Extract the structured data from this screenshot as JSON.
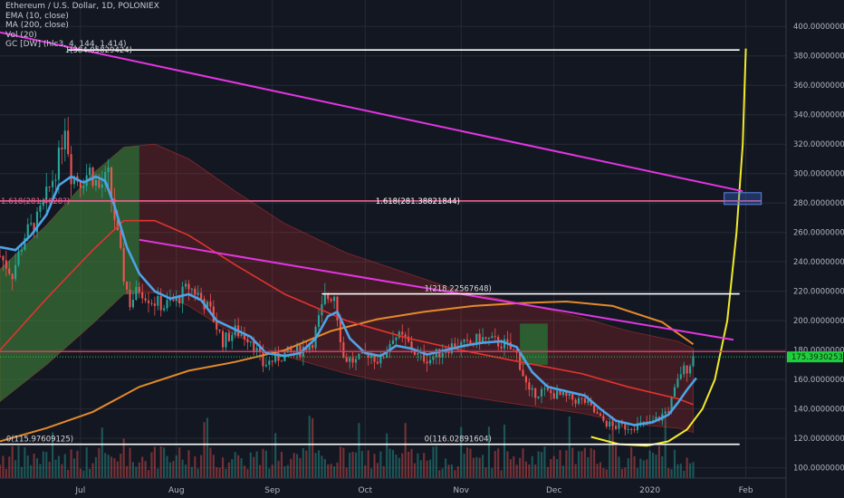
{
  "legend": {
    "title": "Ethereum / U.S. Dollar, 1D, POLONIEX",
    "ema": "EMA (10, close)",
    "ma": "MA (200, close)",
    "vol": "Vol (20)",
    "gc": "GC [DW] (hlc3, 4, 144, 1.414)"
  },
  "colors": {
    "background": "#131722",
    "grid": "#262a35",
    "up": "#26a69a",
    "down": "#ef5350",
    "ema": "#4da3e8",
    "ma": "#e5892b",
    "gc_mid": "#e0332e",
    "gc_green": "#1f8a3a",
    "trendline": "#e236e0",
    "yellow": "#f2ea29",
    "price_label": "#1fce3c",
    "fib": "#ffffff",
    "fib_1618": "#f06292"
  },
  "chart_data": {
    "type": "candlestick",
    "axis": {
      "y_ticks": [
        "100.00000000",
        "120.00000000",
        "140.00000000",
        "160.00000000",
        "180.00000000",
        "200.00000000",
        "220.00000000",
        "240.00000000",
        "260.00000000",
        "280.00000000",
        "300.00000000",
        "320.00000000",
        "340.00000000",
        "360.00000000",
        "380.00000000",
        "400.00000000"
      ],
      "y_values": [
        100,
        120,
        140,
        160,
        180,
        200,
        220,
        240,
        260,
        280,
        300,
        320,
        340,
        360,
        380,
        400
      ],
      "ylim": [
        93,
        418
      ],
      "x_ticks": [
        {
          "label": "Jul",
          "date": "2019-07-01"
        },
        {
          "label": "Aug",
          "date": "2019-08-01"
        },
        {
          "label": "Sep",
          "date": "2019-09-01"
        },
        {
          "label": "Oct",
          "date": "2019-10-01"
        },
        {
          "label": "Nov",
          "date": "2019-11-01"
        },
        {
          "label": "Dec",
          "date": "2019-12-01"
        },
        {
          "label": "2020",
          "date": "2020-01-01"
        },
        {
          "label": "Feb",
          "date": "2020-02-01"
        }
      ],
      "xlim": [
        "2019-06-05",
        "2020-02-14"
      ]
    },
    "current_price": {
      "value": 175.393,
      "label": "175.39302538"
    },
    "levels": [
      {
        "name": "fib-0",
        "value": 115.976,
        "label": "0(115.97609125)",
        "label2": "0(116.02891604)",
        "color": "#ffffff"
      },
      {
        "name": "fib-1",
        "value": 218.226,
        "label": "1(218.22567648)",
        "color": "#ffffff"
      },
      {
        "name": "fib-1618",
        "value": 281.388,
        "label": "1.618(281.38821844)",
        "label_left": "1.618(281.4628?)",
        "color": "#f06292"
      },
      {
        "name": "fib-top",
        "value": 384.06,
        "label": "1(384.05829424)",
        "color": "#ffffff"
      },
      {
        "name": "resistance",
        "value": 179,
        "label": "",
        "color": "#e53964"
      }
    ],
    "trendlines": [
      {
        "name": "upper-trendline",
        "from": [
          "2019-06-05",
          396
        ],
        "to": [
          "2020-01-31",
          288
        ]
      },
      {
        "name": "lower-trendline",
        "from": [
          "2019-07-20",
          255
        ],
        "to": [
          "2020-01-28",
          187
        ]
      }
    ],
    "series": [
      {
        "name": "Close",
        "points": [
          [
            "2019-06-05",
            244
          ],
          [
            "2019-06-09",
            232
          ],
          [
            "2019-06-13",
            258
          ],
          [
            "2019-06-17",
            268
          ],
          [
            "2019-06-21",
            290
          ],
          [
            "2019-06-24",
            310
          ],
          [
            "2019-06-26",
            335
          ],
          [
            "2019-06-28",
            300
          ],
          [
            "2019-07-01",
            295
          ],
          [
            "2019-07-04",
            302
          ],
          [
            "2019-07-07",
            290
          ],
          [
            "2019-07-10",
            298
          ],
          [
            "2019-07-12",
            270
          ],
          [
            "2019-07-15",
            230
          ],
          [
            "2019-07-17",
            212
          ],
          [
            "2019-07-20",
            222
          ],
          [
            "2019-07-24",
            214
          ],
          [
            "2019-07-28",
            210
          ],
          [
            "2019-08-01",
            214
          ],
          [
            "2019-08-05",
            223
          ],
          [
            "2019-08-08",
            218
          ],
          [
            "2019-08-12",
            206
          ],
          [
            "2019-08-16",
            186
          ],
          [
            "2019-08-20",
            193
          ],
          [
            "2019-08-25",
            188
          ],
          [
            "2019-08-29",
            170
          ],
          [
            "2019-09-02",
            174
          ],
          [
            "2019-09-06",
            178
          ],
          [
            "2019-09-10",
            180
          ],
          [
            "2019-09-14",
            186
          ],
          [
            "2019-09-18",
            215
          ],
          [
            "2019-09-21",
            218
          ],
          [
            "2019-09-24",
            175
          ],
          [
            "2019-09-28",
            172
          ],
          [
            "2019-10-02",
            178
          ],
          [
            "2019-10-06",
            172
          ],
          [
            "2019-10-10",
            190
          ],
          [
            "2019-10-14",
            187
          ],
          [
            "2019-10-18",
            176
          ],
          [
            "2019-10-22",
            174
          ],
          [
            "2019-10-26",
            180
          ],
          [
            "2019-10-30",
            184
          ],
          [
            "2019-11-03",
            183
          ],
          [
            "2019-11-07",
            188
          ],
          [
            "2019-11-11",
            186
          ],
          [
            "2019-11-15",
            184
          ],
          [
            "2019-11-19",
            177
          ],
          [
            "2019-11-23",
            150
          ],
          [
            "2019-11-27",
            152
          ],
          [
            "2019-12-01",
            150
          ],
          [
            "2019-12-06",
            147
          ],
          [
            "2019-12-11",
            145
          ],
          [
            "2019-12-16",
            133
          ],
          [
            "2019-12-20",
            128
          ],
          [
            "2019-12-24",
            128
          ],
          [
            "2019-12-28",
            129
          ],
          [
            "2020-01-01",
            130
          ],
          [
            "2020-01-04",
            134
          ],
          [
            "2020-01-07",
            140
          ],
          [
            "2020-01-09",
            152
          ],
          [
            "2020-01-11",
            165
          ],
          [
            "2020-01-13",
            168
          ],
          [
            "2020-01-15",
            175
          ]
        ]
      },
      {
        "name": "EMA (10, close)",
        "points": [
          [
            "2019-06-05",
            250
          ],
          [
            "2019-06-10",
            248
          ],
          [
            "2019-06-15",
            258
          ],
          [
            "2019-06-20",
            272
          ],
          [
            "2019-06-24",
            292
          ],
          [
            "2019-06-28",
            298
          ],
          [
            "2019-07-02",
            294
          ],
          [
            "2019-07-06",
            298
          ],
          [
            "2019-07-09",
            295
          ],
          [
            "2019-07-12",
            278
          ],
          [
            "2019-07-16",
            250
          ],
          [
            "2019-07-20",
            232
          ],
          [
            "2019-07-25",
            220
          ],
          [
            "2019-07-30",
            215
          ],
          [
            "2019-08-05",
            218
          ],
          [
            "2019-08-09",
            214
          ],
          [
            "2019-08-14",
            200
          ],
          [
            "2019-08-19",
            195
          ],
          [
            "2019-08-25",
            189
          ],
          [
            "2019-08-30",
            178
          ],
          [
            "2019-09-05",
            176
          ],
          [
            "2019-09-10",
            178
          ],
          [
            "2019-09-15",
            188
          ],
          [
            "2019-09-19",
            203
          ],
          [
            "2019-09-22",
            206
          ],
          [
            "2019-09-26",
            188
          ],
          [
            "2019-10-01",
            178
          ],
          [
            "2019-10-06",
            176
          ],
          [
            "2019-10-11",
            183
          ],
          [
            "2019-10-16",
            181
          ],
          [
            "2019-10-21",
            177
          ],
          [
            "2019-10-27",
            180
          ],
          [
            "2019-11-02",
            183
          ],
          [
            "2019-11-08",
            185
          ],
          [
            "2019-11-14",
            186
          ],
          [
            "2019-11-19",
            182
          ],
          [
            "2019-11-24",
            165
          ],
          [
            "2019-11-29",
            155
          ],
          [
            "2019-12-05",
            152
          ],
          [
            "2019-12-11",
            149
          ],
          [
            "2019-12-16",
            140
          ],
          [
            "2019-12-21",
            132
          ],
          [
            "2019-12-27",
            129
          ],
          [
            "2020-01-02",
            131
          ],
          [
            "2020-01-07",
            136
          ],
          [
            "2020-01-10",
            144
          ],
          [
            "2020-01-13",
            153
          ],
          [
            "2020-01-16",
            161
          ]
        ]
      },
      {
        "name": "MA (200, close)",
        "points": [
          [
            "2019-06-05",
            118
          ],
          [
            "2019-06-20",
            127
          ],
          [
            "2019-07-05",
            138
          ],
          [
            "2019-07-20",
            155
          ],
          [
            "2019-08-05",
            166
          ],
          [
            "2019-08-20",
            172
          ],
          [
            "2019-09-05",
            180
          ],
          [
            "2019-09-20",
            193
          ],
          [
            "2019-10-05",
            201
          ],
          [
            "2019-10-20",
            206
          ],
          [
            "2019-11-05",
            210
          ],
          [
            "2019-11-20",
            212
          ],
          [
            "2019-12-05",
            213
          ],
          [
            "2019-12-20",
            210
          ],
          [
            "2020-01-05",
            199
          ],
          [
            "2020-01-15",
            184
          ]
        ]
      },
      {
        "name": "GC mid",
        "points": [
          [
            "2019-06-05",
            180
          ],
          [
            "2019-06-20",
            215
          ],
          [
            "2019-07-05",
            248
          ],
          [
            "2019-07-15",
            268
          ],
          [
            "2019-07-25",
            268
          ],
          [
            "2019-08-05",
            258
          ],
          [
            "2019-08-20",
            238
          ],
          [
            "2019-09-05",
            218
          ],
          [
            "2019-09-25",
            200
          ],
          [
            "2019-10-15",
            188
          ],
          [
            "2019-11-01",
            180
          ],
          [
            "2019-11-20",
            172
          ],
          [
            "2019-12-10",
            164
          ],
          [
            "2019-12-25",
            155
          ],
          [
            "2020-01-10",
            147
          ],
          [
            "2020-01-15",
            143
          ]
        ]
      },
      {
        "name": "GC upper",
        "points": [
          [
            "2019-06-05",
            235
          ],
          [
            "2019-06-20",
            265
          ],
          [
            "2019-07-05",
            300
          ],
          [
            "2019-07-15",
            318
          ],
          [
            "2019-07-25",
            320
          ],
          [
            "2019-08-05",
            310
          ],
          [
            "2019-08-20",
            288
          ],
          [
            "2019-09-05",
            266
          ],
          [
            "2019-09-25",
            246
          ],
          [
            "2019-10-15",
            232
          ],
          [
            "2019-11-01",
            220
          ],
          [
            "2019-11-20",
            212
          ],
          [
            "2019-12-10",
            202
          ],
          [
            "2019-12-25",
            193
          ],
          [
            "2020-01-10",
            186
          ],
          [
            "2020-01-15",
            181
          ]
        ]
      },
      {
        "name": "GC lower",
        "points": [
          [
            "2019-06-05",
            145
          ],
          [
            "2019-06-20",
            170
          ],
          [
            "2019-07-05",
            198
          ],
          [
            "2019-07-15",
            218
          ],
          [
            "2019-07-25",
            219
          ],
          [
            "2019-08-05",
            210
          ],
          [
            "2019-08-20",
            190
          ],
          [
            "2019-09-05",
            176
          ],
          [
            "2019-09-25",
            164
          ],
          [
            "2019-10-15",
            155
          ],
          [
            "2019-11-01",
            149
          ],
          [
            "2019-11-20",
            143
          ],
          [
            "2019-12-10",
            137
          ],
          [
            "2019-12-25",
            130
          ],
          [
            "2020-01-10",
            127
          ],
          [
            "2020-01-15",
            124
          ]
        ]
      },
      {
        "name": "Projection",
        "points": [
          [
            "2019-12-13",
            121
          ],
          [
            "2019-12-22",
            116
          ],
          [
            "2019-12-31",
            115
          ],
          [
            "2020-01-07",
            118
          ],
          [
            "2020-01-13",
            126
          ],
          [
            "2020-01-18",
            140
          ],
          [
            "2020-01-22",
            160
          ],
          [
            "2020-01-26",
            200
          ],
          [
            "2020-01-29",
            260
          ],
          [
            "2020-01-31",
            320
          ],
          [
            "2020-02-01",
            385
          ]
        ]
      }
    ],
    "green_zones": [
      {
        "from": "2019-06-05",
        "to": "2019-07-20",
        "lower": "GC lower",
        "upper": "GC upper"
      },
      {
        "from": "2019-11-20",
        "to": "2019-11-29",
        "lower": 170,
        "upper": 198
      }
    ],
    "target_box": {
      "from": "2020-01-25",
      "to": "2020-02-06",
      "low": 279,
      "high": 287
    }
  }
}
